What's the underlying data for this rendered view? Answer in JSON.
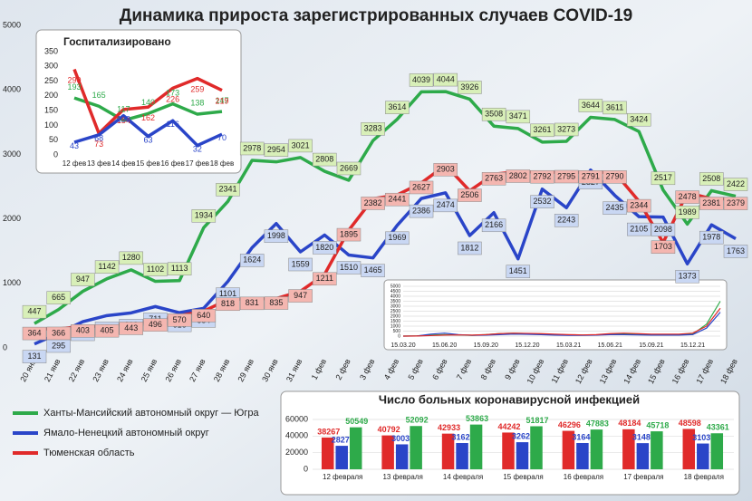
{
  "chart_data": [
    {
      "type": "line",
      "title": "Динамика прироста зарегистрированных случаев COVID-19",
      "categories": [
        "20 янв",
        "21 янв",
        "22 янв",
        "23 янв",
        "24 янв",
        "25 янв",
        "26 янв",
        "27 янв",
        "28 янв",
        "29 янв",
        "30 янв",
        "31 янв",
        "1 фев",
        "2 фев",
        "3 фев",
        "4 фев",
        "5 фев",
        "6 фев",
        "7 фев",
        "8 фев",
        "9 фев",
        "10 фев",
        "11 фев",
        "12 фев",
        "13 фев",
        "14 фев",
        "15 фев",
        "16 фев",
        "17 фев",
        "18 фев"
      ],
      "series": [
        {
          "name": "Ханты-Мансийский автономный округ — Югра",
          "color": "#2eaa4a",
          "values": [
            447,
            665,
            947,
            1142,
            1280,
            1102,
            1113,
            1934,
            2341,
            2978,
            2954,
            3021,
            2808,
            2669,
            3283,
            3614,
            4039,
            4044,
            3926,
            3508,
            3471,
            3261,
            3273,
            3644,
            3611,
            3424,
            2517,
            1989,
            2508,
            2422
          ]
        },
        {
          "name": "Ямало-Ненецкий автономный округ",
          "color": "#2a45c8",
          "values": [
            131,
            295,
            477,
            571,
            613,
            711,
            616,
            684,
            1101,
            1624,
            1998,
            1559,
            1820,
            1510,
            1465,
            1969,
            2386,
            2474,
            1812,
            2166,
            1451,
            2532,
            2243,
            2827,
            2435,
            2105,
            2098,
            1373,
            1978,
            1763
          ]
        },
        {
          "name": "Тюменская область",
          "color": "#e02a2a",
          "values": [
            364,
            366,
            403,
            405,
            443,
            496,
            570,
            640,
            818,
            831,
            835,
            947,
            1211,
            1895,
            2382,
            2441,
            2627,
            2903,
            2506,
            2763,
            2802,
            2792,
            2795,
            2791,
            2790,
            2344,
            1703,
            2478,
            2381,
            2379
          ]
        }
      ],
      "ylim": [
        0,
        5000
      ],
      "yticks": [
        0,
        1000,
        2000,
        3000,
        4000,
        5000
      ],
      "data_labels": true,
      "grid": false
    },
    {
      "type": "line",
      "title": "Госпитализировано",
      "categories": [
        "12 фев",
        "13 фев",
        "14 фев",
        "15 фев",
        "16 фев",
        "17 фев",
        "18 фев"
      ],
      "series": [
        {
          "color": "#2eaa4a",
          "values": [
            193,
            165,
            117,
            140,
            173,
            138,
            147
          ]
        },
        {
          "color": "#e02a2a",
          "values": [
            290,
            73,
            154,
            162,
            226,
            259,
            219
          ]
        },
        {
          "color": "#2a45c8",
          "values": [
            43,
            68,
            133,
            63,
            116,
            32,
            70
          ]
        }
      ],
      "ylim": [
        0,
        350
      ],
      "yticks": [
        0,
        50,
        100,
        150,
        200,
        250,
        300,
        350
      ],
      "data_labels": true,
      "grid": false
    },
    {
      "type": "line",
      "categories": [
        "15.03.20",
        null,
        null,
        "15.06.20",
        null,
        null,
        "15.09.20",
        null,
        null,
        "15.12.20",
        null,
        null,
        "15.03.21",
        null,
        null,
        "15.06.21",
        null,
        null,
        "15.09.21",
        null,
        null,
        "15.12.21",
        null,
        null
      ],
      "series": [
        {
          "color": "#2eaa4a",
          "values": [
            0,
            20,
            100,
            150,
            120,
            80,
            150,
            250,
            300,
            250,
            200,
            150,
            120,
            100,
            120,
            200,
            250,
            200,
            150,
            150,
            150,
            200,
            1200,
            3500
          ]
        },
        {
          "color": "#2a45c8",
          "values": [
            0,
            10,
            200,
            300,
            150,
            80,
            100,
            150,
            200,
            180,
            150,
            100,
            80,
            80,
            100,
            150,
            150,
            120,
            100,
            100,
            100,
            150,
            800,
            2400
          ]
        },
        {
          "color": "#e02a2a",
          "values": [
            0,
            10,
            50,
            100,
            120,
            100,
            150,
            250,
            300,
            280,
            250,
            200,
            150,
            120,
            150,
            250,
            300,
            250,
            200,
            200,
            200,
            300,
            1000,
            2800
          ]
        }
      ],
      "ylim": [
        0,
        5000
      ],
      "yticks": [
        0,
        500,
        1000,
        1500,
        2000,
        2500,
        3000,
        3500,
        4000,
        4500,
        5000
      ],
      "data_labels": false,
      "grid": true
    },
    {
      "type": "bar",
      "title": "Число больных коронавирусной инфекцией",
      "categories": [
        "12 февраля",
        "13 февраля",
        "14 февраля",
        "15 февраля",
        "16 февраля",
        "17 февраля",
        "18 февраля"
      ],
      "series": [
        {
          "color": "#e02a2a",
          "values": [
            38267,
            40792,
            42933,
            44242,
            46296,
            48184,
            48598
          ]
        },
        {
          "color": "#2a45c8",
          "values": [
            28277,
            30032,
            31621,
            32621,
            31644,
            31487,
            31030
          ]
        },
        {
          "color": "#2eaa4a",
          "values": [
            50549,
            52092,
            53863,
            51817,
            47883,
            45718,
            43361
          ]
        }
      ],
      "ylim": [
        0,
        60000
      ],
      "yticks": [
        0,
        20000,
        40000,
        60000
      ],
      "data_labels": true,
      "grid": true
    }
  ]
}
